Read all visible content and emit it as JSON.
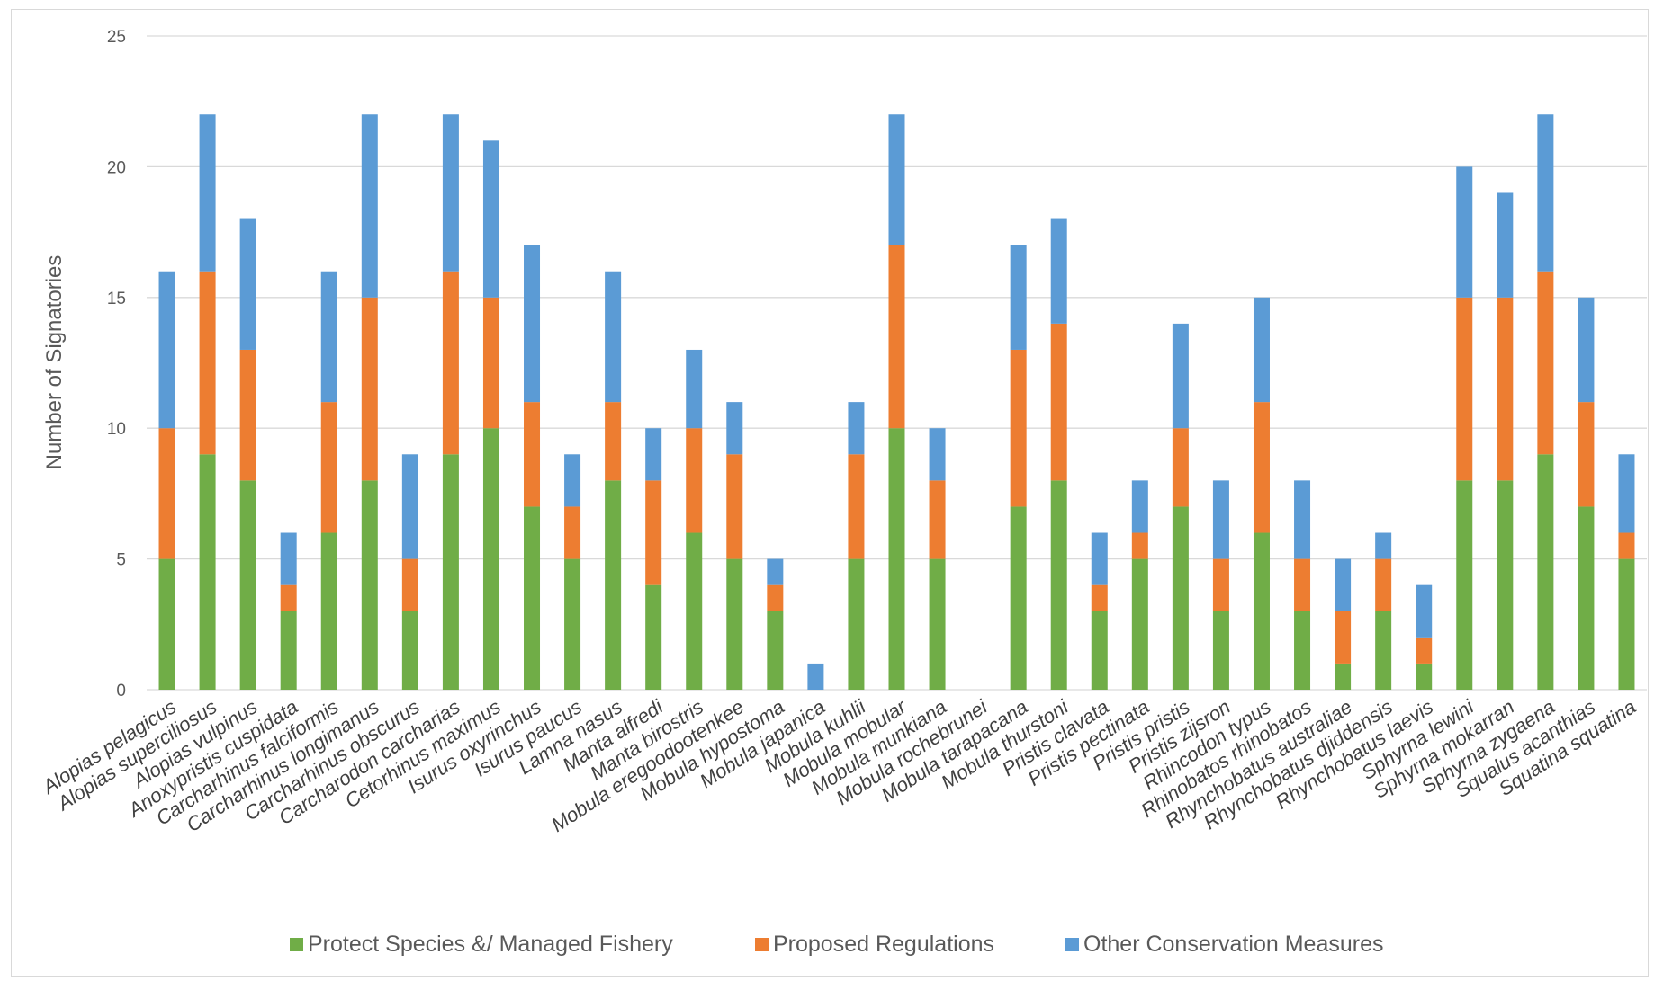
{
  "chart_data": {
    "type": "bar",
    "stacked": true,
    "title": "",
    "xlabel": "",
    "ylabel": "Number of Signatories",
    "ylim": [
      0,
      25
    ],
    "yticks": [
      0,
      5,
      10,
      15,
      20,
      25
    ],
    "grid": true,
    "legend_position": "bottom",
    "categories": [
      "Alopias pelagicus",
      "Alopias superciliosus",
      "Alopias vulpinus",
      "Anoxypristis cuspidata",
      "Carcharhinus falciformis",
      "Carcharhinus longimanus",
      "Carcharhinus obscurus",
      "Carcharodon carcharias",
      "Cetorhinus maximus",
      "Isurus oxyrinchus",
      "Isurus paucus",
      "Lamna nasus",
      "Manta alfredi",
      "Manta birostris",
      "Mobula eregoodootenkee",
      "Mobula hypostoma",
      "Mobula japanica",
      "Mobula kuhlii",
      "Mobula mobular",
      "Mobula munkiana",
      "Mobula rochebrunei",
      "Mobula tarapacana",
      "Mobula thurstoni",
      "Pristis clavata",
      "Pristis pectinata",
      "Pristis pristis",
      "Pristis zijsron",
      "Rhincodon typus",
      "Rhinobatos rhinobatos",
      "Rhynchobatus australiae",
      "Rhynchobatus djiddensis",
      "Rhynchobatus laevis",
      "Sphyrna lewini",
      "Sphyrna mokarran",
      "Sphyrna zygaena",
      "Squalus acanthias",
      "Squatina squatina"
    ],
    "series": [
      {
        "name": "Protect Species &/ Managed Fishery",
        "color": "#70ad47",
        "values": [
          5,
          9,
          8,
          3,
          6,
          8,
          3,
          9,
          10,
          7,
          5,
          8,
          4,
          6,
          5,
          3,
          0,
          5,
          10,
          5,
          0,
          7,
          8,
          3,
          5,
          7,
          3,
          6,
          3,
          1,
          3,
          1,
          8,
          8,
          9,
          7,
          5
        ]
      },
      {
        "name": "Proposed Regulations",
        "color": "#ed7d31",
        "values": [
          5,
          7,
          5,
          1,
          5,
          7,
          2,
          7,
          5,
          4,
          2,
          3,
          4,
          4,
          4,
          1,
          0,
          4,
          7,
          3,
          0,
          6,
          6,
          1,
          1,
          3,
          2,
          5,
          2,
          2,
          2,
          1,
          7,
          7,
          7,
          4,
          1
        ]
      },
      {
        "name": "Other Conservation Measures",
        "color": "#5b9bd5",
        "values": [
          6,
          6,
          5,
          2,
          5,
          7,
          4,
          6,
          6,
          6,
          2,
          5,
          2,
          3,
          2,
          1,
          1,
          2,
          5,
          2,
          0,
          4,
          4,
          2,
          2,
          4,
          3,
          4,
          3,
          2,
          1,
          2,
          5,
          4,
          6,
          4,
          3
        ]
      }
    ]
  }
}
